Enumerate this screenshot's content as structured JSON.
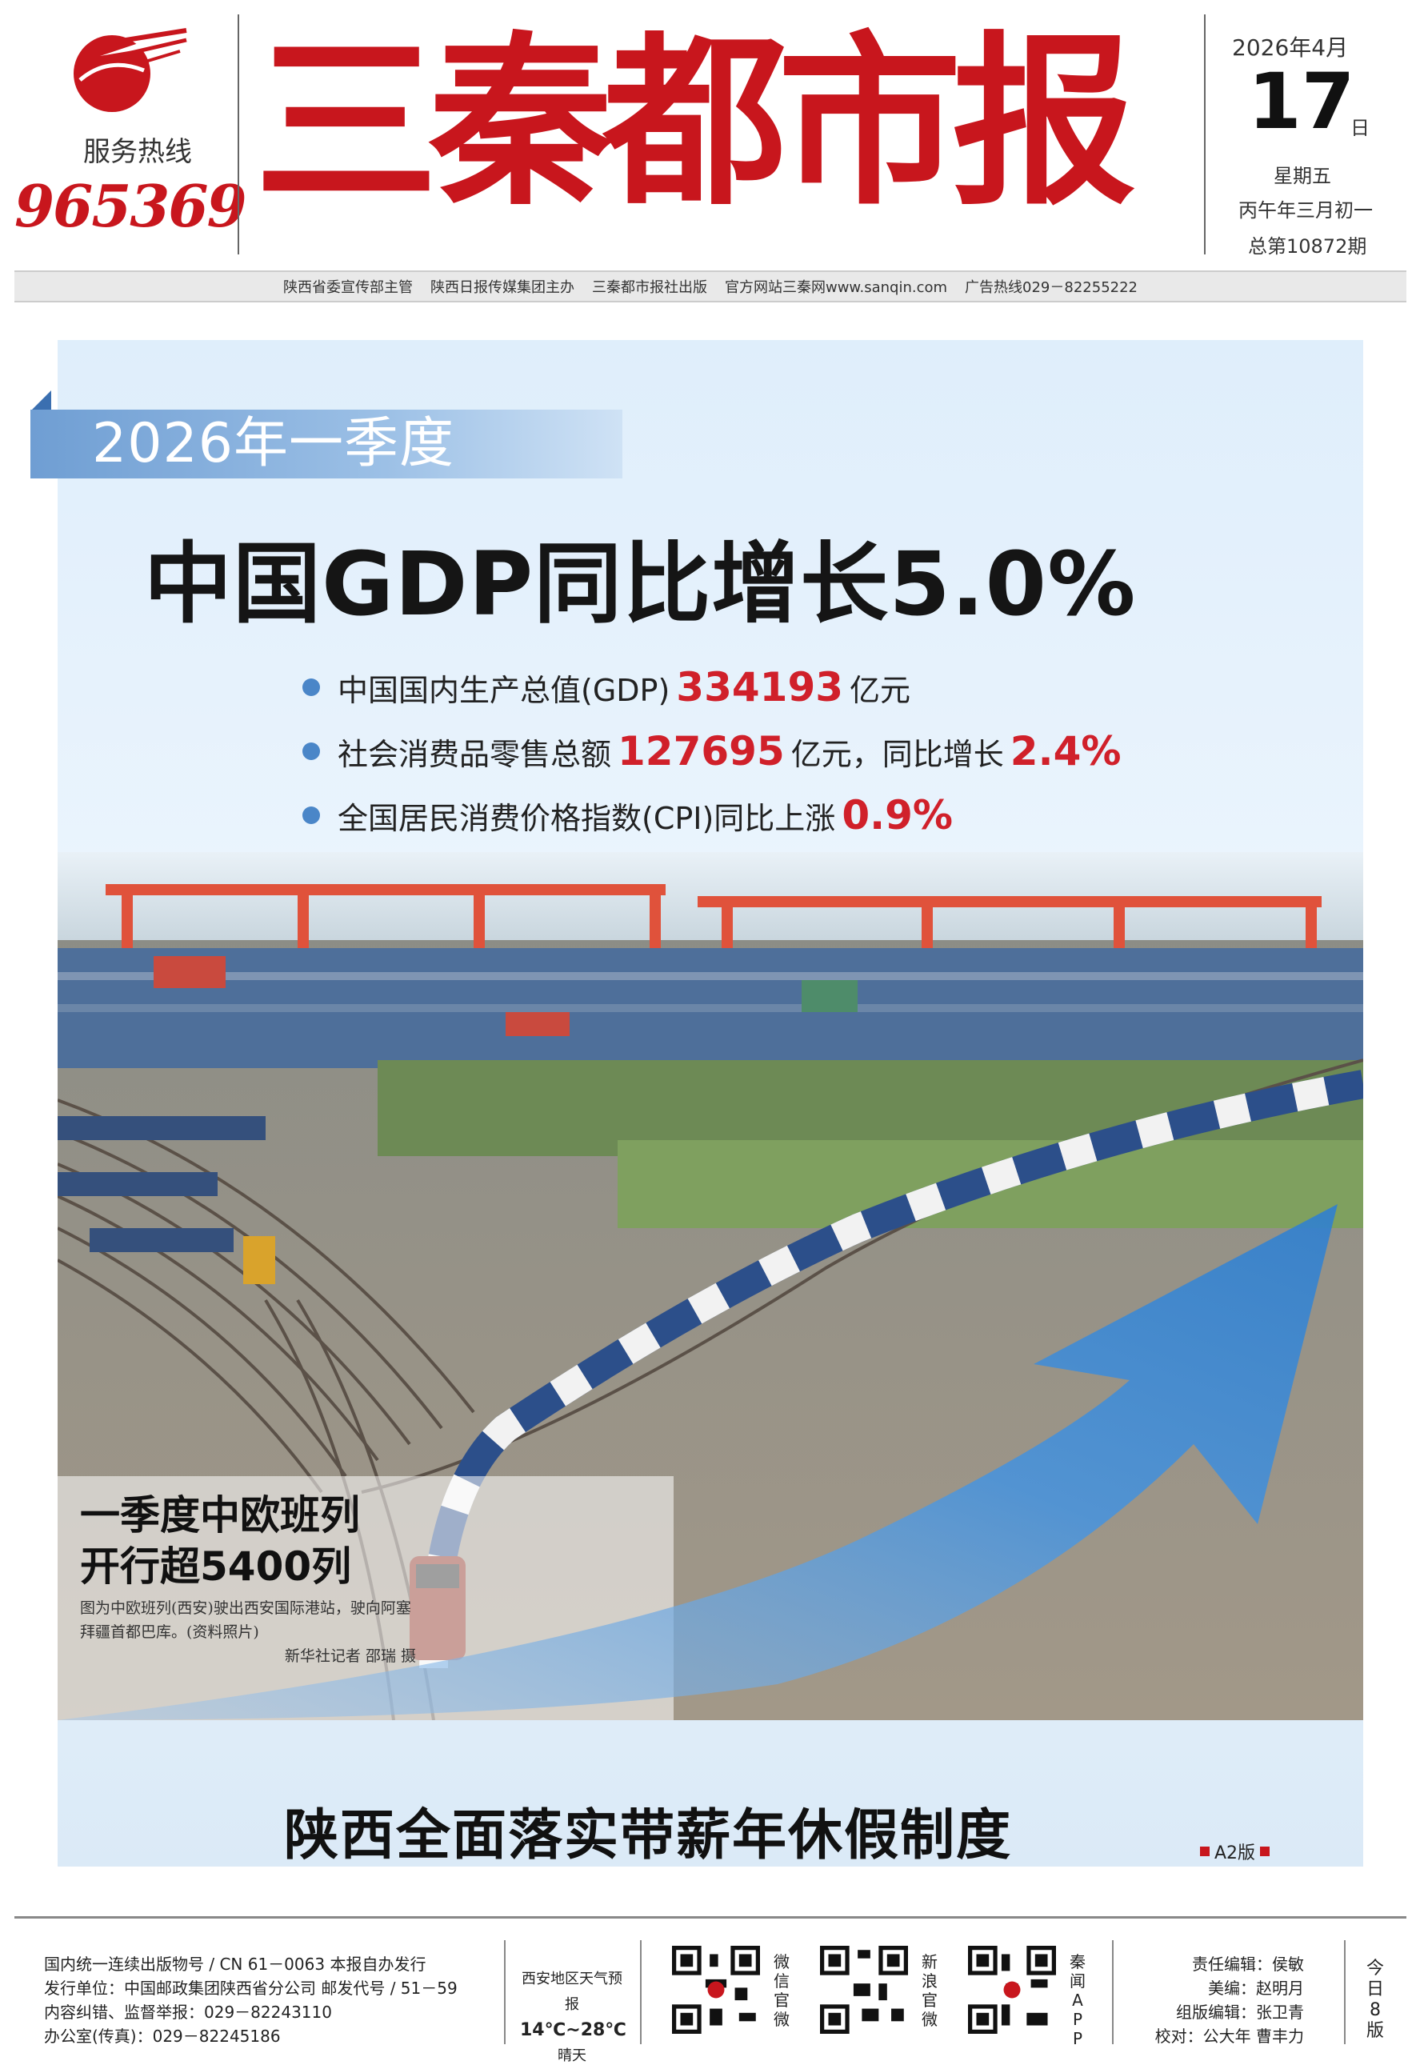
{
  "masthead": {
    "hotline_label": "服务热线",
    "hotline_number": "965369",
    "title": "三秦都市报",
    "year_month": "2026年4月",
    "day": "17",
    "day_suffix": "日",
    "weekday": "星期五",
    "lunar_date": "丙午年三月初一",
    "issue_number": "总第10872期"
  },
  "info_bar": [
    "陕西省委宣传部主管",
    "陕西日报传媒集团主办",
    "三秦都市报社出版",
    "官方网站三秦网www.sanqin.com",
    "广告热线029－82255222"
  ],
  "lead_story": {
    "kicker": "2026年一季度",
    "headline": "中国GDP同比增长5.0%",
    "stats": [
      {
        "pre": "中国国内生产总值(GDP)",
        "value": "334193",
        "post": "亿元",
        "value2": "",
        "post2": ""
      },
      {
        "pre": "社会消费品零售总额",
        "value": "127695",
        "post": "亿元，同比增长",
        "value2": "2.4%",
        "post2": ""
      },
      {
        "pre": "全国居民消费价格指数(CPI)同比上涨",
        "value": "0.9%",
        "post": "",
        "value2": "",
        "post2": ""
      }
    ],
    "photo_title_line1": "一季度中欧班列",
    "photo_title_line2": "开行超5400列",
    "photo_caption": "图为中欧班列(西安)驶出西安国际港站，驶向阿塞拜疆首都巴库。(资料照片)",
    "photo_credit": "新华社记者 邵瑞 摄"
  },
  "secondary_story": {
    "headline": "陕西全面落实带薪年休假制度",
    "page_ref": "A2版"
  },
  "footer": {
    "pub_line1": "国内统一连续出版物号 / CN 61－0063  本报自办发行",
    "pub_line2": "发行单位：中国邮政集团陕西省分公司  邮发代号 / 51－59",
    "pub_line3": "内容纠错、监督举报：029－82243110",
    "pub_line4": "办公室(传真)：029－82245186",
    "weather_region": "西安地区天气预报",
    "weather_temp": "14℃~28℃",
    "weather_desc": "晴天",
    "qr_labels": [
      "微信官微",
      "新浪官微",
      "秦闻APP"
    ],
    "editor_line1": "责任编辑：侯敏",
    "editor_line2": "美编：赵明月",
    "editor_line3": "组版编辑：张卫青",
    "editor_line4": "校对：公大年 曹丰力",
    "editions": "今日8版"
  },
  "colors": {
    "brand_red": "#c8161d",
    "accent_blue": "#4a86c8",
    "highlight_red": "#d0202a"
  }
}
